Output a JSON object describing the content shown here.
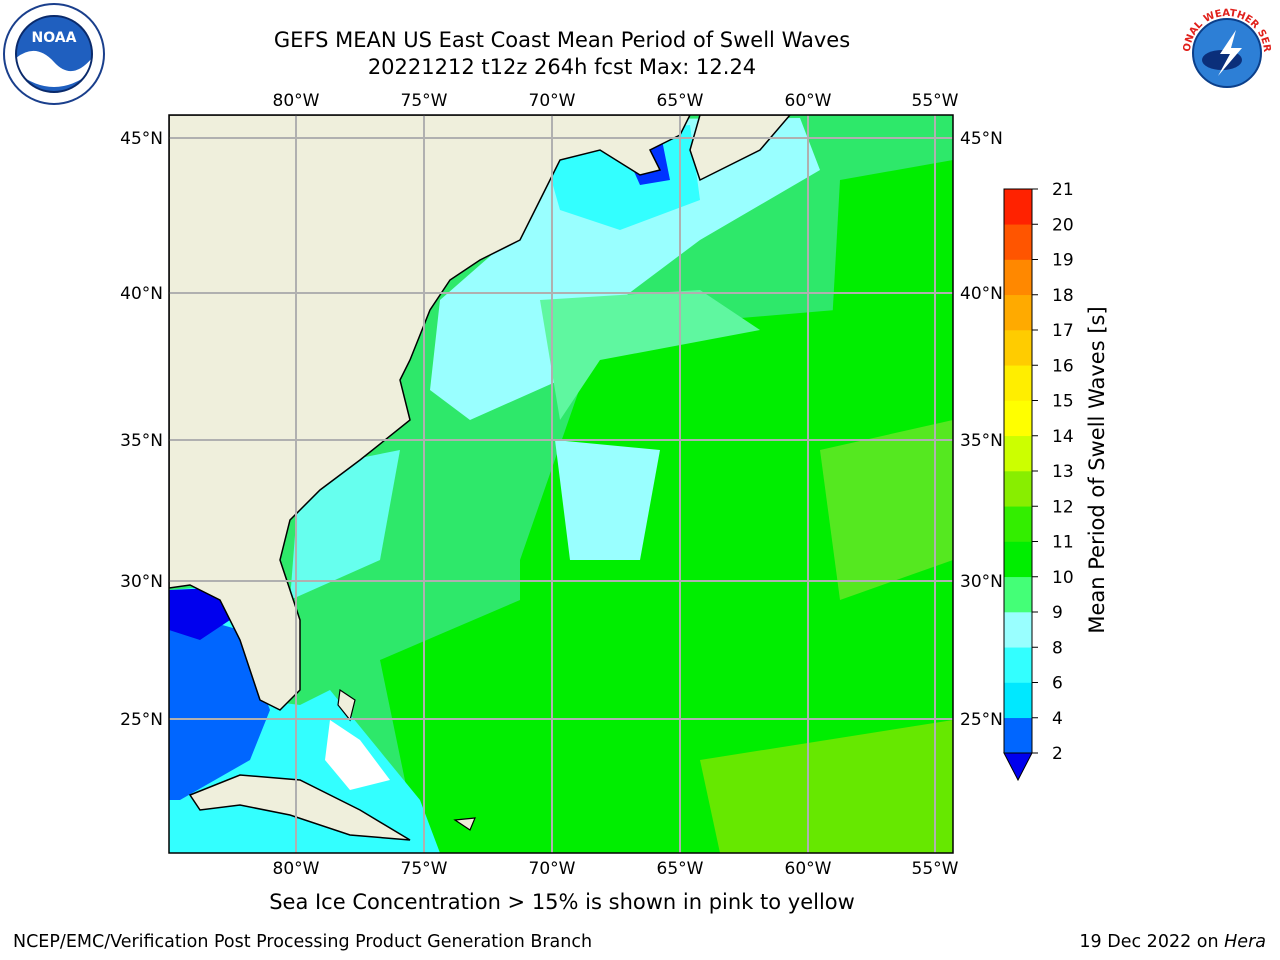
{
  "header": {
    "title_line1": "GEFS MEAN US East Coast Mean Period of Swell Waves",
    "title_line2": "20221212 t12z 264h fcst   Max: 12.24"
  },
  "logos": {
    "left": {
      "icon": "noaa-logo-icon",
      "text": "NOAA"
    },
    "right": {
      "icon": "nws-logo-icon",
      "text": "NATIONAL WEATHER SERVICE"
    }
  },
  "map": {
    "lon_labels": [
      "80°W",
      "75°W",
      "70°W",
      "65°W",
      "60°W",
      "55°W"
    ],
    "lat_labels": [
      "45°N",
      "40°N",
      "35°N",
      "30°N",
      "25°N"
    ],
    "land_color": "#efefdc",
    "grid_color": "#b0b0b0"
  },
  "colorbar": {
    "label": "Mean Period of Swell Waves [s]",
    "ticks": [
      "2",
      "4",
      "6",
      "8",
      "9",
      "10",
      "11",
      "12",
      "13",
      "14",
      "15",
      "16",
      "17",
      "18",
      "19",
      "20",
      "21"
    ],
    "colors": [
      "#0066ff",
      "#00e8ff",
      "#33ffff",
      "#99ffff",
      "#44ff77",
      "#00ee00",
      "#33ee00",
      "#88ee00",
      "#ccff00",
      "#ffff00",
      "#ffee00",
      "#ffcc00",
      "#ffaa00",
      "#ff8800",
      "#ff5500",
      "#ff2200"
    ],
    "under_color": "#0000ee"
  },
  "notes": {
    "ice": "Sea Ice Concentration > 15% is shown in pink to yellow"
  },
  "footer": {
    "left": "NCEP/EMC/Verification Post Processing Product Generation Branch",
    "right_prefix": "19 Dec 2022 on ",
    "right_host": "Hera"
  }
}
